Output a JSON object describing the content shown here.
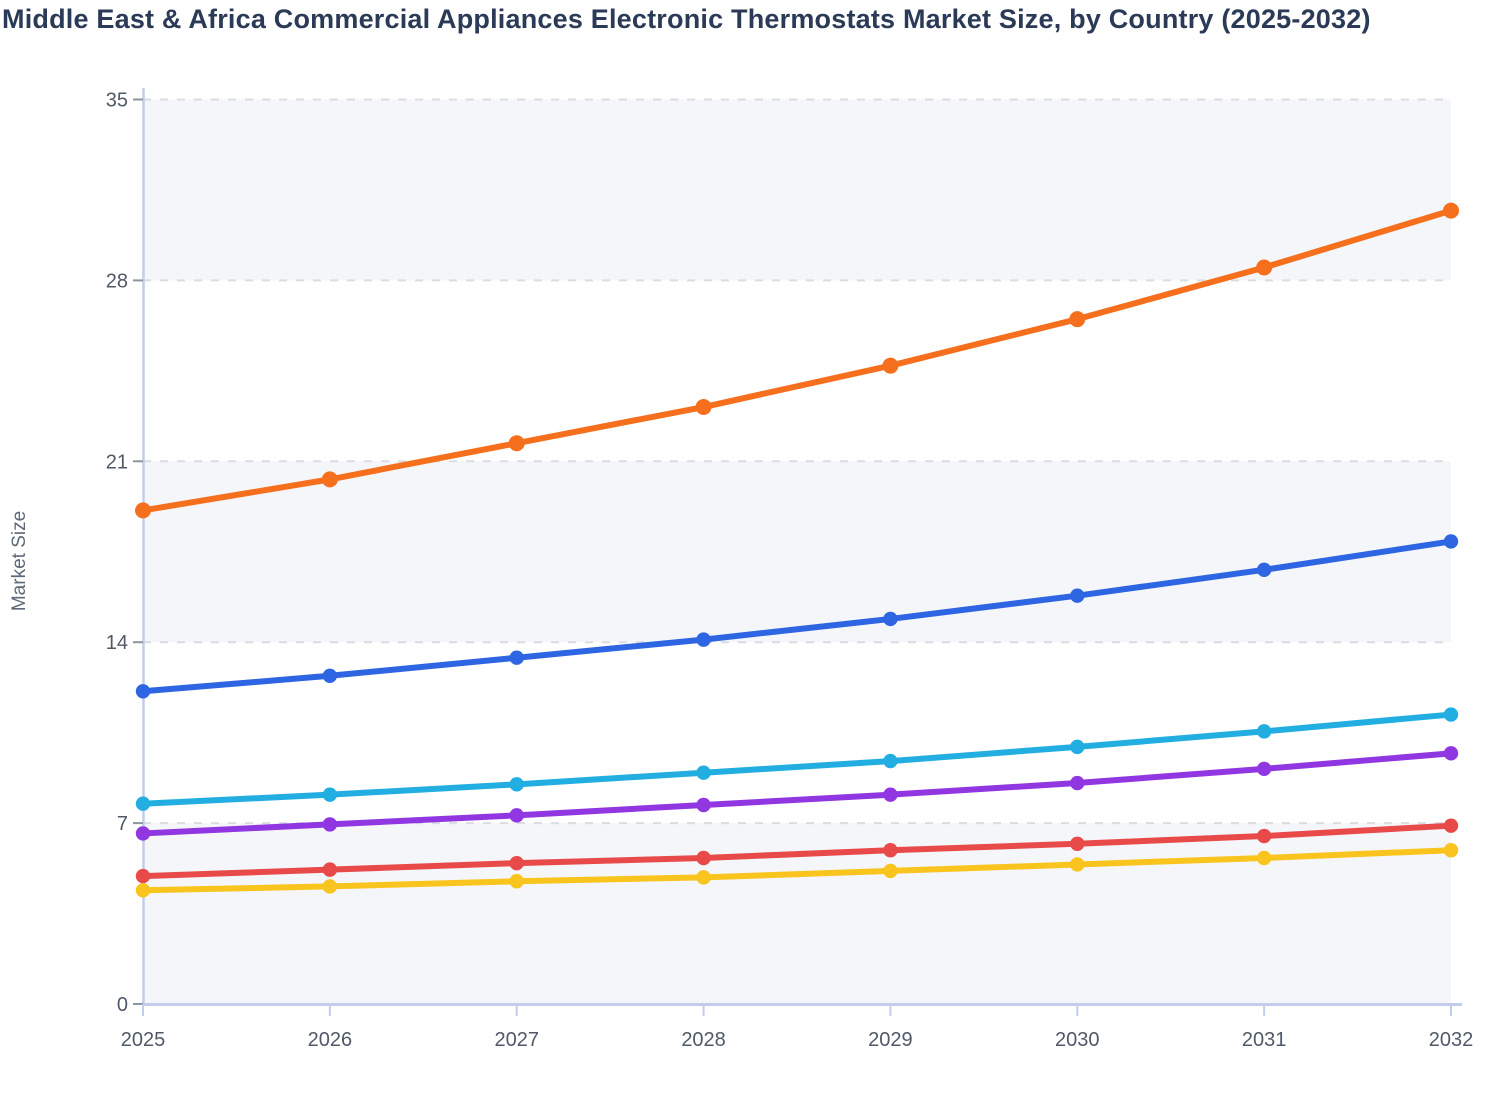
{
  "page": {
    "background_color": "#ffffff"
  },
  "chart_data": {
    "type": "line",
    "title": "Middle East & Africa Commercial Appliances Electronic Thermostats Market Size, by Country (2025-2032)",
    "xlabel": "",
    "ylabel": "Market Size",
    "x": [
      2025,
      2026,
      2027,
      2028,
      2029,
      2030,
      2031,
      2032
    ],
    "ylim": [
      0,
      35
    ],
    "yticks": [
      0,
      7,
      14,
      21,
      28,
      35
    ],
    "grid": "horizontal dashed gridlines at each y tick",
    "legend": "none",
    "shaded_bands": [
      [
        28,
        35
      ],
      [
        14,
        21
      ],
      [
        0,
        7
      ]
    ],
    "series": [
      {
        "name": "series-orange",
        "color": "#f56f1d",
        "values": [
          19.1,
          20.3,
          21.7,
          23.1,
          24.7,
          26.5,
          28.5,
          30.7
        ]
      },
      {
        "name": "series-blue",
        "color": "#2e65e2",
        "values": [
          12.1,
          12.7,
          13.4,
          14.1,
          14.9,
          15.8,
          16.8,
          17.9
        ]
      },
      {
        "name": "series-cyan",
        "color": "#22aee1",
        "values": [
          7.75,
          8.1,
          8.5,
          8.95,
          9.4,
          9.95,
          10.55,
          11.2
        ]
      },
      {
        "name": "series-purple",
        "color": "#9137e2",
        "values": [
          6.6,
          6.95,
          7.3,
          7.7,
          8.1,
          8.55,
          9.1,
          9.7
        ]
      },
      {
        "name": "series-red",
        "color": "#e84a4a",
        "values": [
          4.95,
          5.2,
          5.45,
          5.65,
          5.95,
          6.2,
          6.5,
          6.9
        ]
      },
      {
        "name": "series-yellow",
        "color": "#f8c41d",
        "values": [
          4.4,
          4.55,
          4.75,
          4.9,
          5.15,
          5.4,
          5.65,
          5.95
        ]
      }
    ]
  },
  "colors": {
    "title_text": "#2b3a56",
    "tick_label": "#4f5968",
    "axis_line": "#c2cdea",
    "y_tick_mark": "#8b94a3",
    "gridline": "#d9dce2",
    "band_fill": "#f5f6f9",
    "background": "#ffffff"
  }
}
